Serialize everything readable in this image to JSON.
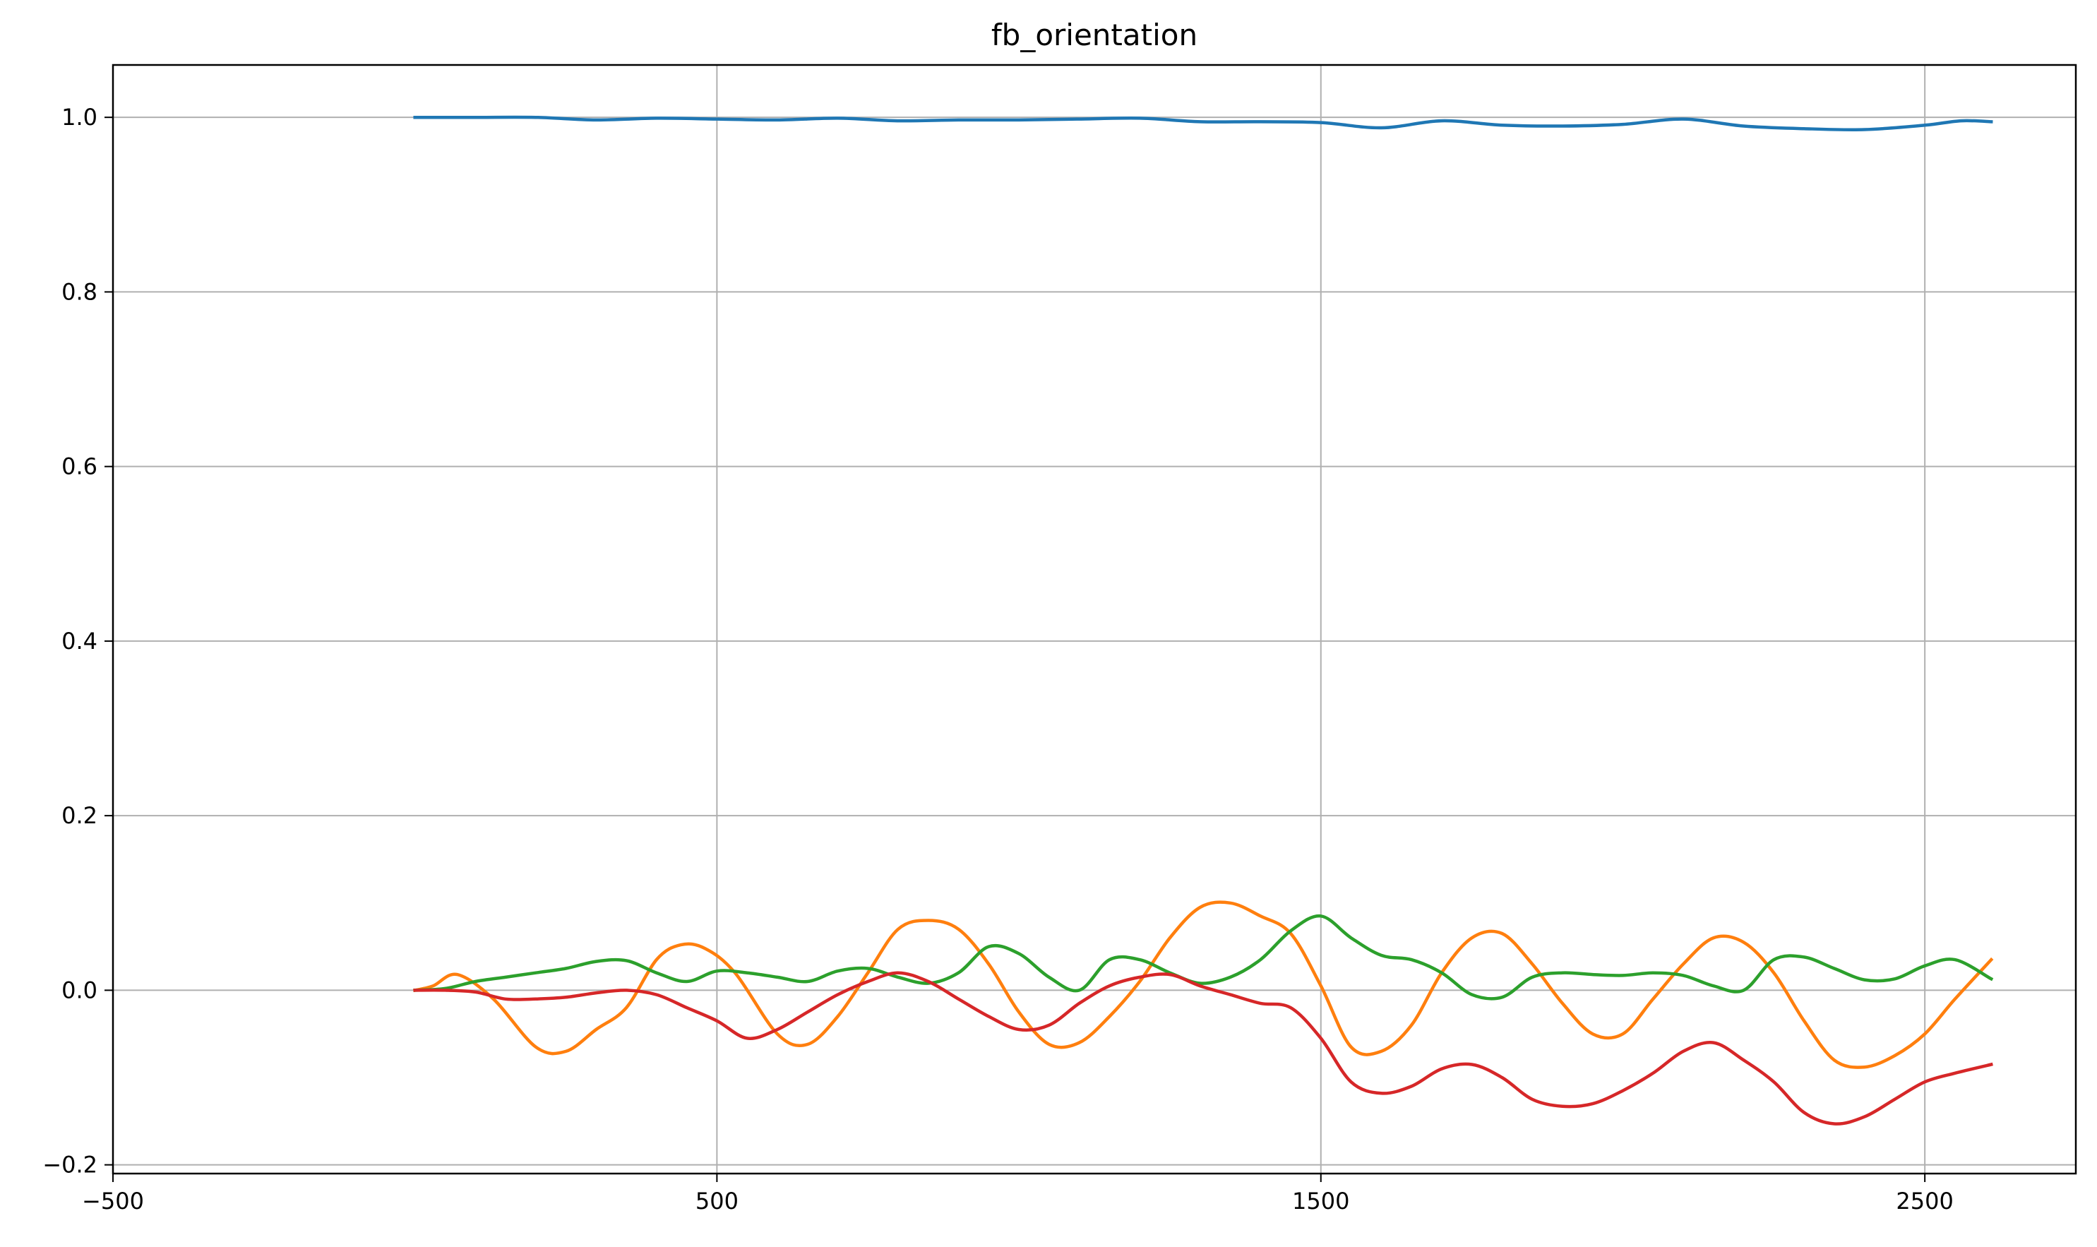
{
  "chart_data": {
    "type": "line",
    "title": "fb_orientation",
    "xlabel": "",
    "ylabel": "",
    "xlim": [
      -500,
      2750
    ],
    "ylim": [
      -0.21,
      1.06
    ],
    "xticks": [
      -500,
      500,
      1500,
      2500
    ],
    "xtick_labels": [
      "−500",
      "500",
      "1500",
      "2500"
    ],
    "yticks": [
      -0.2,
      0.0,
      0.2,
      0.4,
      0.6,
      0.8,
      1.0
    ],
    "ytick_labels": [
      "−0.2",
      "0.0",
      "0.2",
      "0.4",
      "0.6",
      "0.8",
      "1.0"
    ],
    "grid": true,
    "legend": "none",
    "colors": [
      "#1f77b4",
      "#ff7f0e",
      "#2ca02c",
      "#d62728"
    ],
    "series": [
      {
        "color": "#1f77b4",
        "x": [
          0,
          100,
          200,
          300,
          400,
          500,
          600,
          700,
          800,
          900,
          1000,
          1100,
          1200,
          1300,
          1400,
          1500,
          1600,
          1700,
          1800,
          1900,
          2000,
          2100,
          2200,
          2300,
          2400,
          2500,
          2560,
          2610
        ],
        "y": [
          1.0,
          1.0,
          1.0,
          0.997,
          0.999,
          0.998,
          0.997,
          0.999,
          0.996,
          0.997,
          0.997,
          0.998,
          0.999,
          0.995,
          0.995,
          0.994,
          0.988,
          0.996,
          0.991,
          0.99,
          0.992,
          0.998,
          0.99,
          0.987,
          0.986,
          0.991,
          0.996,
          0.995
        ]
      },
      {
        "color": "#ff7f0e",
        "x": [
          0,
          30,
          70,
          130,
          200,
          250,
          300,
          350,
          400,
          440,
          480,
          530,
          600,
          650,
          700,
          750,
          800,
          850,
          900,
          950,
          1000,
          1050,
          1100,
          1150,
          1200,
          1250,
          1300,
          1350,
          1400,
          1450,
          1500,
          1550,
          1600,
          1650,
          1700,
          1750,
          1800,
          1850,
          1900,
          1950,
          2000,
          2050,
          2100,
          2150,
          2200,
          2250,
          2300,
          2350,
          2400,
          2450,
          2500,
          2550,
          2610
        ],
        "y": [
          0.0,
          0.005,
          0.018,
          -0.01,
          -0.065,
          -0.07,
          -0.045,
          -0.02,
          0.035,
          0.052,
          0.048,
          0.02,
          -0.05,
          -0.062,
          -0.03,
          0.02,
          0.07,
          0.08,
          0.07,
          0.03,
          -0.025,
          -0.062,
          -0.06,
          -0.03,
          0.01,
          0.06,
          0.095,
          0.1,
          0.085,
          0.065,
          0.005,
          -0.065,
          -0.07,
          -0.04,
          0.02,
          0.06,
          0.065,
          0.03,
          -0.015,
          -0.05,
          -0.05,
          -0.01,
          0.03,
          0.06,
          0.055,
          0.02,
          -0.035,
          -0.08,
          -0.088,
          -0.075,
          -0.05,
          -0.01,
          0.035
        ]
      },
      {
        "color": "#2ca02c",
        "x": [
          0,
          50,
          100,
          150,
          200,
          250,
          300,
          350,
          400,
          450,
          500,
          550,
          600,
          650,
          700,
          750,
          800,
          850,
          900,
          950,
          1000,
          1050,
          1100,
          1150,
          1200,
          1250,
          1300,
          1350,
          1400,
          1450,
          1500,
          1550,
          1600,
          1650,
          1700,
          1750,
          1800,
          1850,
          1900,
          1950,
          2000,
          2050,
          2100,
          2150,
          2200,
          2250,
          2300,
          2350,
          2400,
          2450,
          2500,
          2550,
          2610
        ],
        "y": [
          0.0,
          0.002,
          0.01,
          0.015,
          0.02,
          0.025,
          0.033,
          0.034,
          0.02,
          0.01,
          0.022,
          0.02,
          0.015,
          0.01,
          0.022,
          0.025,
          0.015,
          0.008,
          0.02,
          0.05,
          0.042,
          0.015,
          0.0,
          0.035,
          0.035,
          0.02,
          0.008,
          0.015,
          0.035,
          0.068,
          0.085,
          0.06,
          0.04,
          0.035,
          0.02,
          -0.005,
          -0.008,
          0.015,
          0.02,
          0.018,
          0.017,
          0.02,
          0.017,
          0.005,
          0.0,
          0.035,
          0.038,
          0.025,
          0.012,
          0.013,
          0.028,
          0.035,
          0.013
        ]
      },
      {
        "color": "#d62728",
        "x": [
          0,
          50,
          100,
          150,
          200,
          250,
          300,
          350,
          400,
          450,
          500,
          550,
          600,
          650,
          700,
          750,
          800,
          850,
          900,
          950,
          1000,
          1050,
          1100,
          1150,
          1200,
          1250,
          1300,
          1350,
          1400,
          1450,
          1500,
          1550,
          1600,
          1650,
          1700,
          1750,
          1800,
          1850,
          1900,
          1950,
          2000,
          2050,
          2100,
          2150,
          2200,
          2250,
          2300,
          2350,
          2400,
          2450,
          2500,
          2550,
          2610
        ],
        "y": [
          0.0,
          0.0,
          -0.002,
          -0.01,
          -0.01,
          -0.008,
          -0.003,
          0.0,
          -0.005,
          -0.02,
          -0.035,
          -0.055,
          -0.045,
          -0.025,
          -0.005,
          0.01,
          0.02,
          0.01,
          -0.01,
          -0.03,
          -0.045,
          -0.04,
          -0.015,
          0.005,
          0.015,
          0.018,
          0.005,
          -0.005,
          -0.015,
          -0.02,
          -0.055,
          -0.105,
          -0.118,
          -0.11,
          -0.09,
          -0.085,
          -0.1,
          -0.125,
          -0.133,
          -0.13,
          -0.115,
          -0.095,
          -0.07,
          -0.06,
          -0.08,
          -0.105,
          -0.14,
          -0.153,
          -0.145,
          -0.125,
          -0.105,
          -0.095,
          -0.085
        ]
      }
    ]
  }
}
